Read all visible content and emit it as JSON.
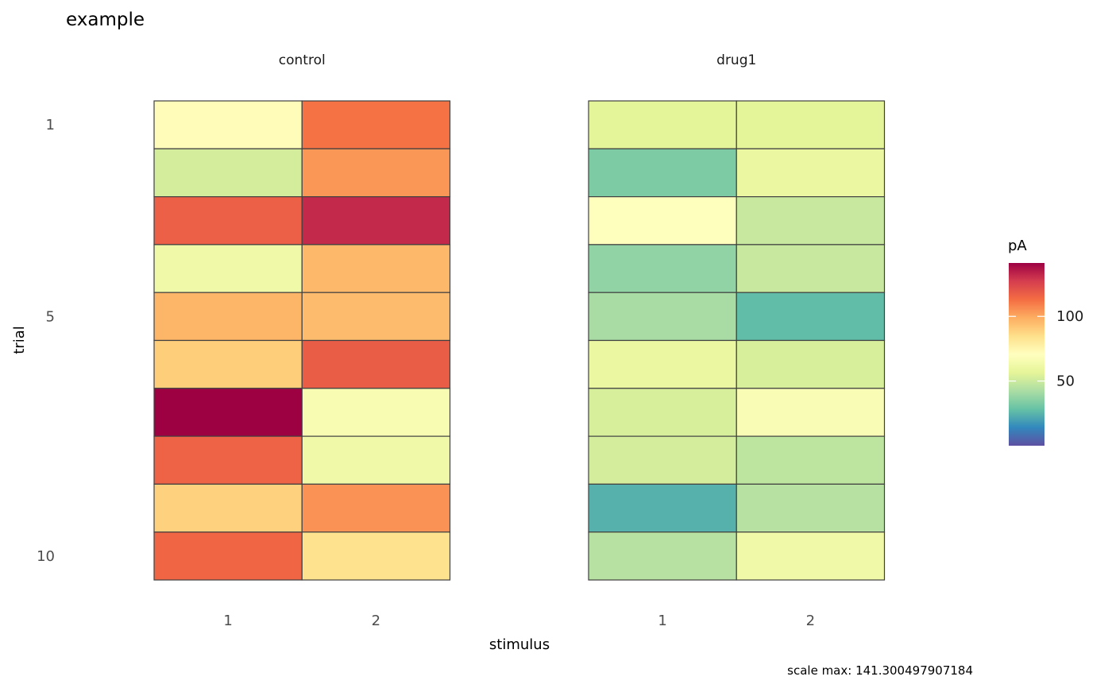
{
  "chart_data": {
    "type": "heatmap",
    "title": "example",
    "xlabel": "stimulus",
    "ylabel": "trial",
    "x_categories": [
      "1",
      "2"
    ],
    "y_ticks": [
      {
        "value": 1,
        "label": "1"
      },
      {
        "value": 5,
        "label": "5"
      },
      {
        "value": 10,
        "label": "10"
      }
    ],
    "trials": [
      1,
      2,
      3,
      4,
      5,
      6,
      7,
      8,
      9,
      10
    ],
    "panels": [
      {
        "name": "control",
        "values": [
          [
            72,
            112
          ],
          [
            52,
            104
          ],
          [
            117,
            132
          ],
          [
            62,
            96
          ],
          [
            97,
            95
          ],
          [
            90,
            118
          ],
          [
            141.3,
            66
          ],
          [
            116,
            62
          ],
          [
            89,
            105
          ],
          [
            115,
            84
          ]
        ]
      },
      {
        "name": "drug1",
        "values": [
          [
            56,
            56
          ],
          [
            33,
            60
          ],
          [
            70,
            49
          ],
          [
            37,
            49
          ],
          [
            42,
            27
          ],
          [
            60,
            53
          ],
          [
            53,
            67
          ],
          [
            52,
            47
          ],
          [
            24,
            45
          ],
          [
            45,
            62
          ]
        ]
      }
    ],
    "legend": {
      "title": "pA",
      "placement": "right",
      "min": 0,
      "max": 141.300497907184,
      "ticks": [
        {
          "value": 50,
          "label": "50"
        },
        {
          "value": 100,
          "label": "100"
        }
      ],
      "palette": [
        "#5E4FA2",
        "#3288BD",
        "#66C2A5",
        "#ABDDA4",
        "#E6F598",
        "#FFFFBF",
        "#FEE08B",
        "#FDAE61",
        "#F46D43",
        "#D53E4F",
        "#9E0142"
      ]
    },
    "caption": "scale max: 141.300497907184"
  }
}
